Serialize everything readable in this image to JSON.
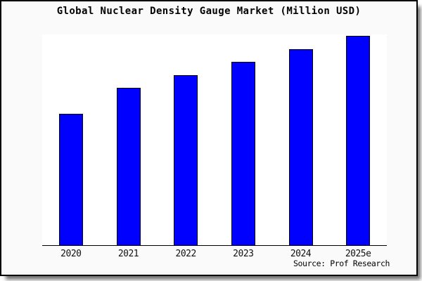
{
  "figure": {
    "title": "Global Nuclear Density Gauge Market (Million USD)",
    "source_note": "Source: Prof Research"
  },
  "colors": {
    "figure_background": "#fafafa",
    "plot_background": "#ffffff",
    "bar_fill": "#0000ff",
    "bar_edge": "#000000",
    "axis_line": "#000000",
    "title_text": "#000000",
    "tick_text": "#111111",
    "frame_border": "#000000"
  },
  "chart_data": {
    "type": "bar",
    "title": "Global Nuclear Density Gauge Market (Million USD)",
    "categories": [
      "2020",
      "2021",
      "2022",
      "2023",
      "2024",
      "2025e"
    ],
    "values": [
      62.7,
      75.0,
      81.3,
      87.7,
      93.7,
      100.0
    ],
    "value_scale_note": "no y-axis ticks or value labels shown; values estimated as percent of tallest (2025e) bar",
    "xlabel": "",
    "ylabel": "",
    "ylim": [
      0,
      100.5
    ],
    "grid": false,
    "legend": false,
    "visible_spines": [
      "bottom"
    ],
    "source": "Source: Prof Research"
  }
}
